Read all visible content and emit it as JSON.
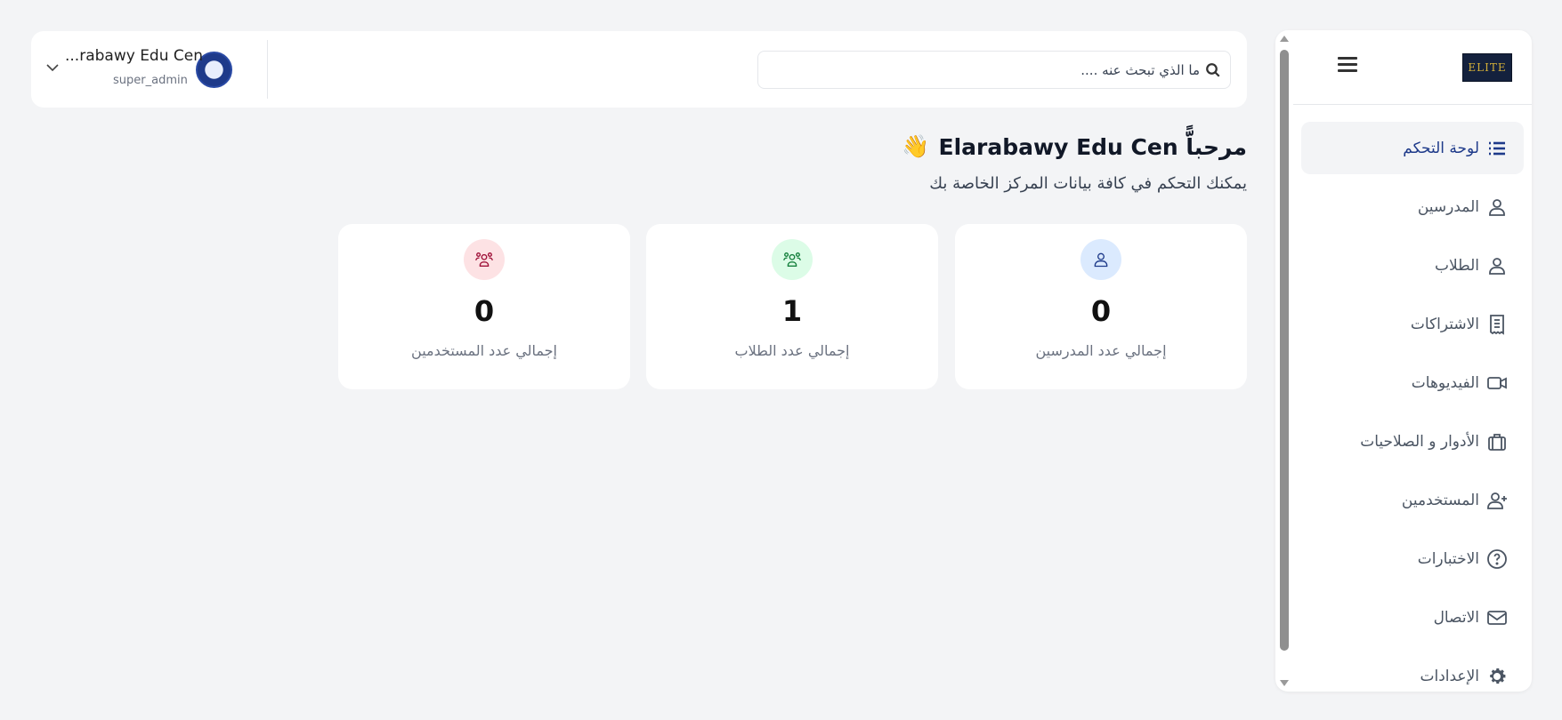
{
  "sidebar": {
    "logo_text": "ELITE",
    "items": [
      {
        "label": "لوحة التحكم",
        "icon": "list-icon",
        "active": true
      },
      {
        "label": "المدرسين",
        "icon": "user-icon"
      },
      {
        "label": "الطلاب",
        "icon": "user-icon"
      },
      {
        "label": "الاشتراكات",
        "icon": "receipt-icon"
      },
      {
        "label": "الفيديوهات",
        "icon": "video-icon"
      },
      {
        "label": "الأدوار و الصلاحيات",
        "icon": "briefcase-icon"
      },
      {
        "label": "المستخدمين",
        "icon": "user-plus-icon"
      },
      {
        "label": "الاختبارات",
        "icon": "question-circle-icon"
      },
      {
        "label": "الاتصال",
        "icon": "envelope-icon"
      },
      {
        "label": "الإعدادات",
        "icon": "gear-icon"
      }
    ],
    "active_color": "#1e3a8a"
  },
  "header": {
    "search_placeholder": "ما الذي تبحث عنه ....",
    "user_name": "...rabawy Edu Cen",
    "user_role": "super_admin"
  },
  "main": {
    "title": "مرحباًّّّ Elarabawy Edu Cen",
    "title_emoji": "👋",
    "subtitle": "يمكنك التحكم في كافة بيانات المركز الخاصة بك",
    "cards": [
      {
        "value": "0",
        "label": "إجمالي عدد المدرسين",
        "icon": "user-icon",
        "color": "#1e3a8a",
        "bg": "#dbeafe"
      },
      {
        "value": "1",
        "label": "إجمالي عدد الطلاب",
        "icon": "users-group-icon",
        "color": "#15803d",
        "bg": "#dcfce7"
      },
      {
        "value": "0",
        "label": "إجمالي عدد المستخدمين",
        "icon": "users-group-icon",
        "color": "#9f1239",
        "bg": "#fde2e4"
      }
    ]
  }
}
